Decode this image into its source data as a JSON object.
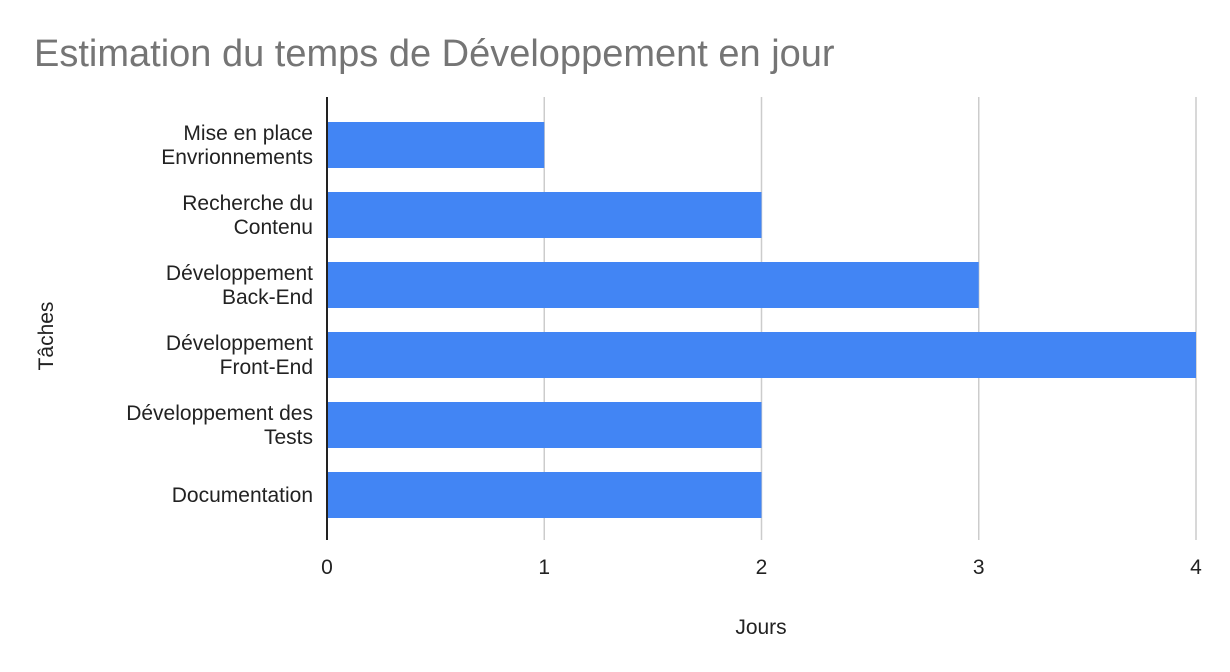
{
  "chart_data": {
    "type": "bar",
    "orientation": "horizontal",
    "title": "Estimation du temps de Développement en jour",
    "xlabel": "Jours",
    "ylabel": "Tâches",
    "categories": [
      [
        "Mise en place",
        "Envrionnements"
      ],
      [
        "Recherche du",
        "Contenu"
      ],
      [
        "Développement",
        "Back-End"
      ],
      [
        "Développement",
        "Front-End"
      ],
      [
        "Développement des",
        "Tests"
      ],
      [
        "Documentation"
      ]
    ],
    "values": [
      1,
      2,
      3,
      4,
      2,
      2
    ],
    "xlim": [
      0,
      4
    ],
    "xticks": [
      "0",
      "1",
      "2",
      "3",
      "4"
    ],
    "grid": "vertical",
    "legend": "none",
    "colors": {
      "bar": "#4285f4",
      "grid": "#cccccc",
      "axis": "#222222",
      "title": "#757575"
    }
  }
}
